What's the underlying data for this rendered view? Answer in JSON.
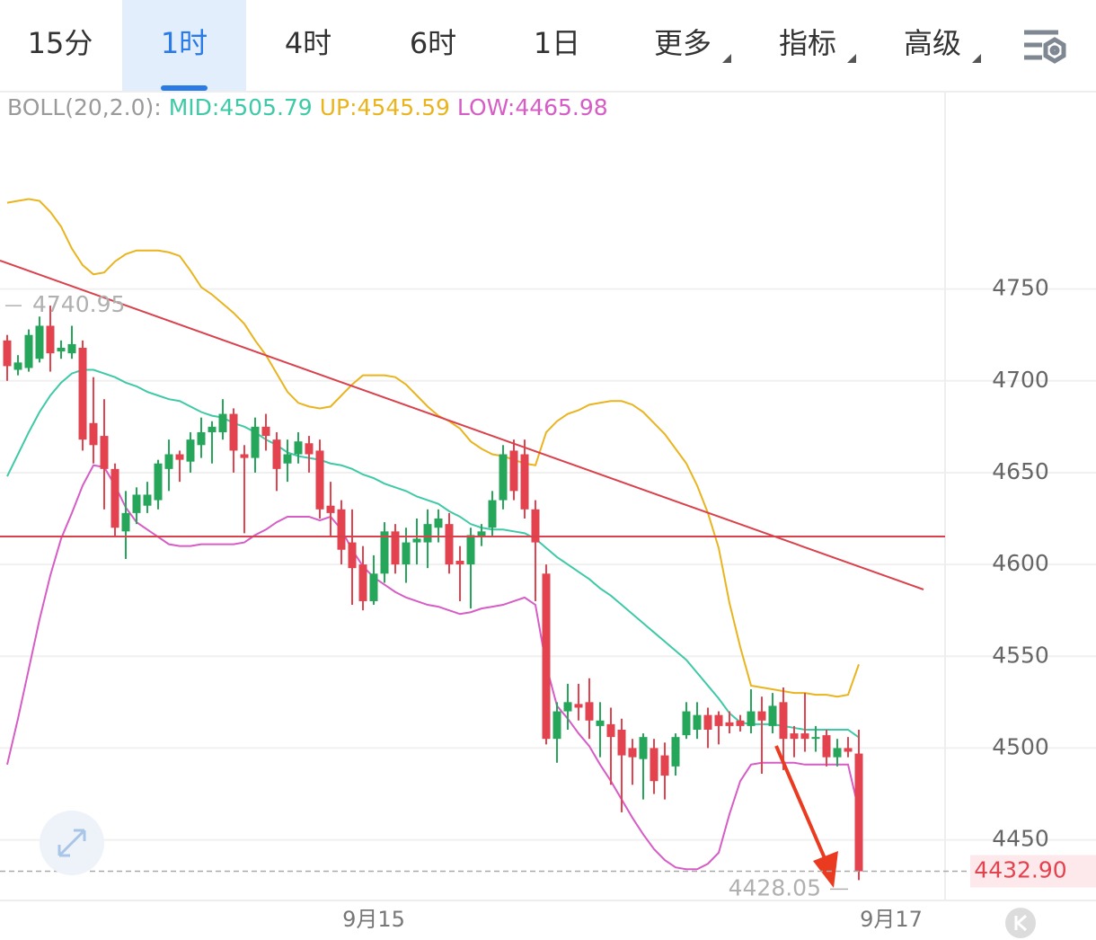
{
  "tabs": [
    "15分",
    "1时",
    "4时",
    "6时",
    "1日",
    "更多",
    "指标",
    "高级"
  ],
  "active_tab": 1,
  "chart_data": {
    "type": "candlestick",
    "indicator": "BOLL(20,2.0):",
    "up_color": "#25a65a",
    "down_color": "#e2434f",
    "ylim": [
      4417,
      4857
    ],
    "yticks": [
      4450,
      4500,
      4550,
      4600,
      4650,
      4700,
      4750
    ],
    "grid": true,
    "last_price": {
      "value": 4432.9,
      "label": "4432.90"
    },
    "categories": [
      null,
      null,
      null,
      null,
      null,
      null,
      null,
      null,
      null,
      null,
      null,
      null,
      null,
      null,
      null,
      null,
      null,
      null,
      null,
      null,
      null,
      null,
      null,
      null,
      null,
      null,
      null,
      null,
      null,
      null,
      null,
      null,
      null,
      null,
      "9月15",
      null,
      null,
      null,
      null,
      null,
      null,
      null,
      null,
      null,
      null,
      null,
      null,
      null,
      null,
      null,
      null,
      null,
      null,
      null,
      null,
      null,
      null,
      null,
      null,
      null,
      null,
      null,
      null,
      null,
      null,
      null,
      null,
      null,
      null,
      null,
      null,
      null,
      null,
      null,
      null,
      null,
      null,
      null,
      null,
      null,
      null,
      null,
      "9月17"
    ],
    "open": [
      4722,
      4706,
      4707,
      4712,
      4730,
      4716,
      4715,
      4718,
      4677,
      4670,
      4652,
      4618,
      4628,
      4632,
      4635,
      4652,
      4660,
      4656,
      4665,
      4672,
      4672,
      4682,
      4660,
      4658,
      4675,
      4668,
      4655,
      4660,
      4666,
      4662,
      4632,
      4630,
      4612,
      4600,
      4580,
      4595,
      4618,
      4600,
      4612,
      4612,
      4620,
      4622,
      4602,
      4600,
      4615,
      4620,
      4635,
      4662,
      4660,
      4630,
      4595,
      4505,
      4520,
      4524,
      4525,
      4512,
      4513,
      4510,
      4500,
      4494,
      4500,
      4496,
      4490,
      4507,
      4510,
      4518,
      4518,
      4514,
      4515,
      4512,
      4520,
      4512,
      4525,
      4508,
      4508,
      4505,
      4507,
      4495,
      4500,
      4497,
      null,
      null,
      null
    ],
    "high": [
      4725,
      4714,
      4728,
      4735,
      4740.95,
      4722,
      4730,
      4722,
      4702,
      4690,
      4655,
      4640,
      4642,
      4645,
      4657,
      4668,
      4662,
      4672,
      4680,
      4678,
      4690,
      4685,
      4665,
      4680,
      4682,
      4672,
      4668,
      4672,
      4670,
      4668,
      4645,
      4635,
      4630,
      4610,
      4605,
      4623,
      4622,
      4620,
      4625,
      4630,
      4630,
      4628,
      4610,
      4620,
      4622,
      4640,
      4665,
      4668,
      4668,
      4635,
      4600,
      4525,
      4535,
      4535,
      4538,
      4525,
      4522,
      4516,
      4505,
      4508,
      4505,
      4503,
      4508,
      4525,
      4525,
      4522,
      4520,
      4520,
      4518,
      4532,
      4528,
      4530,
      4533,
      4512,
      4530,
      4512,
      4510,
      4505,
      4506,
      4510,
      null,
      null,
      null
    ],
    "low": [
      4700,
      4703,
      4705,
      4710,
      4705,
      4712,
      4712,
      4662,
      4655,
      4630,
      4615,
      4603,
      4622,
      4628,
      4630,
      4640,
      4645,
      4650,
      4658,
      4655,
      4668,
      4650,
      4617,
      4650,
      4662,
      4640,
      4645,
      4655,
      4650,
      4625,
      4615,
      4600,
      4578,
      4575,
      4578,
      4590,
      4595,
      4590,
      4600,
      4598,
      4612,
      4595,
      4580,
      4576,
      4610,
      4615,
      4630,
      4635,
      4625,
      4580,
      4502,
      4492,
      4510,
      4515,
      4505,
      4495,
      4480,
      4465,
      4480,
      4472,
      4475,
      4472,
      4485,
      4505,
      4505,
      4500,
      4502,
      4508,
      4509,
      4508,
      4486,
      4508,
      4488,
      4495,
      4498,
      4498,
      4490,
      4490,
      4495,
      4428.05,
      null,
      null,
      null
    ],
    "close": [
      4708,
      4710,
      4725,
      4730,
      4715,
      4718,
      4720,
      4668,
      4665,
      4652,
      4620,
      4628,
      4638,
      4638,
      4655,
      4660,
      4657,
      4668,
      4672,
      4675,
      4682,
      4662,
      4658,
      4675,
      4670,
      4652,
      4660,
      4667,
      4660,
      4630,
      4628,
      4608,
      4598,
      4580,
      4595,
      4618,
      4600,
      4612,
      4614,
      4622,
      4625,
      4600,
      4600,
      4616,
      4618,
      4635,
      4660,
      4640,
      4630,
      4612,
      4505,
      4520,
      4525,
      4522,
      4515,
      4515,
      4506,
      4496,
      4495,
      4506,
      4482,
      4485,
      4506,
      4520,
      4518,
      4510,
      4512,
      4512,
      4512,
      4520,
      4515,
      4523,
      4505,
      4505,
      4505,
      4506,
      4495,
      4500,
      4498,
      4432.9,
      null,
      null,
      null
    ],
    "series": [
      {
        "name": "MID:",
        "color": "#3ec9a7",
        "values": [
          4648,
          4660,
          4672,
          4683,
          4692,
          4699,
          4704,
          4706,
          4706,
          4704,
          4702,
          4699,
          4697,
          4694,
          4692,
          4690,
          4689,
          4686,
          4683,
          4681,
          4680,
          4677,
          4675,
          4672,
          4668,
          4665,
          4661,
          4659,
          4658,
          4657,
          4655,
          4654,
          4652,
          4649,
          4647,
          4644,
          4642,
          4640,
          4637,
          4635,
          4633,
          4629,
          4626,
          4622,
          4620,
          4619,
          4619,
          4618,
          4617,
          4614,
          4609,
          4604,
          4600,
          4596,
          4592,
          4587,
          4583,
          4578,
          4573,
          4568,
          4563,
          4558,
          4553,
          4548,
          4541,
          4534,
          4527,
          4519,
          4514,
          4513,
          4513,
          4513,
          4512,
          4511,
          4510,
          4510,
          4510,
          4510,
          4510,
          4505.79,
          null,
          null,
          null
        ]
      },
      {
        "name": "UP:",
        "color": "#e9b41e",
        "values": [
          4797,
          4798,
          4799,
          4798,
          4792,
          4784,
          4772,
          4763,
          4758,
          4759,
          4765,
          4769,
          4771,
          4771,
          4771,
          4770,
          4768,
          4760,
          4751,
          4747,
          4742,
          4737,
          4731,
          4722,
          4714,
          4704,
          4694,
          4688,
          4686,
          4685,
          4686,
          4692,
          4698,
          4703,
          4703,
          4703,
          4702,
          4698,
          4692,
          4686,
          4681,
          4678,
          4674,
          4667,
          4663,
          4660,
          4659,
          4657,
          4655,
          4654,
          4672,
          4678,
          4682,
          4684,
          4687,
          4688,
          4689,
          4689,
          4687,
          4683,
          4677,
          4671,
          4663,
          4655,
          4643,
          4628,
          4609,
          4579,
          4555,
          4534,
          4533,
          4532,
          4531,
          4530,
          4530,
          4529,
          4529,
          4528,
          4529,
          4545.59,
          null,
          null,
          null
        ]
      },
      {
        "name": "LOW:",
        "color": "#d65cc6",
        "values": [
          4491,
          4516,
          4543,
          4570,
          4594,
          4614,
          4628,
          4643,
          4654,
          4653,
          4643,
          4631,
          4623,
          4619,
          4615,
          4611,
          4610,
          4610,
          4611,
          4611,
          4611,
          4611,
          4612,
          4616,
          4619,
          4623,
          4626,
          4626,
          4626,
          4624,
          4626,
          4619,
          4608,
          4599,
          4593,
          4589,
          4585,
          4582,
          4580,
          4578,
          4577,
          4575,
          4573,
          4574,
          4576,
          4577,
          4578,
          4580,
          4582,
          4578,
          4545,
          4523,
          4516,
          4508,
          4501,
          4491,
          4482,
          4472,
          4462,
          4453,
          4445,
          4439,
          4435,
          4434,
          4434,
          4437,
          4443,
          4464,
          4482,
          4491,
          4492,
          4492,
          4492,
          4492,
          4491,
          4491,
          4491,
          4491,
          4491,
          4465.98,
          null,
          null,
          null
        ]
      }
    ]
  }
}
